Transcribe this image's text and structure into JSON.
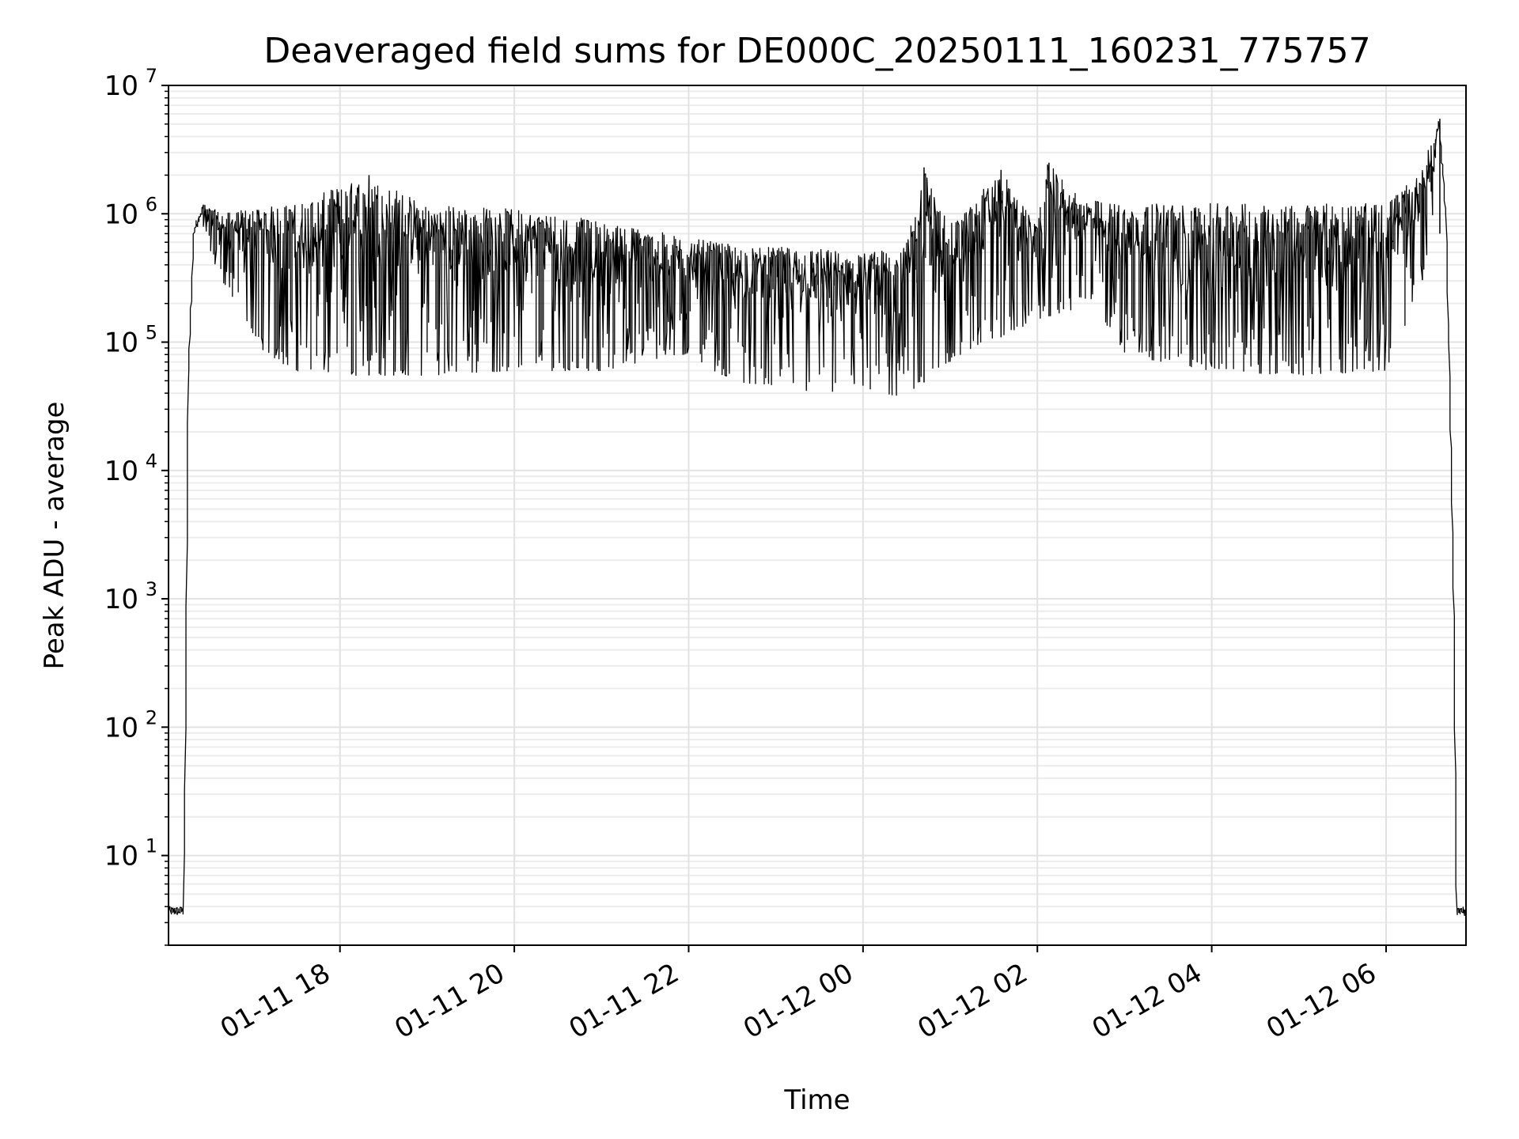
{
  "chart_data": {
    "type": "line",
    "title": "Deaveraged field sums for DE000C_20250111_160231_775757",
    "xlabel": "Time",
    "ylabel": "Peak ADU - average",
    "yscale": "log",
    "ylim": [
      2,
      10000000
    ],
    "y_ticks": [
      {
        "base": "10",
        "exp": "1",
        "value": 10
      },
      {
        "base": "10",
        "exp": "2",
        "value": 100
      },
      {
        "base": "10",
        "exp": "3",
        "value": 1000
      },
      {
        "base": "10",
        "exp": "4",
        "value": 10000
      },
      {
        "base": "10",
        "exp": "5",
        "value": 100000
      },
      {
        "base": "10",
        "exp": "6",
        "value": 1000000
      },
      {
        "base": "10",
        "exp": "7",
        "value": 10000000
      }
    ],
    "xlim": [
      "2025-01-11 16:02",
      "2025-01-12 06:55"
    ],
    "x_ticks": [
      {
        "label": "01-11 18",
        "value": "2025-01-11 18:00"
      },
      {
        "label": "01-11 20",
        "value": "2025-01-11 20:00"
      },
      {
        "label": "01-11 22",
        "value": "2025-01-11 22:00"
      },
      {
        "label": "01-12 00",
        "value": "2025-01-12 00:00"
      },
      {
        "label": "01-12 02",
        "value": "2025-01-12 02:00"
      },
      {
        "label": "01-12 04",
        "value": "2025-01-12 04:00"
      },
      {
        "label": "01-12 06",
        "value": "2025-01-12 06:00"
      }
    ],
    "grid": true,
    "line_color": "#000000",
    "series": [
      {
        "name": "",
        "upper_envelope": [
          [
            "2025-01-11 16:02",
            4
          ],
          [
            "2025-01-11 16:13",
            4
          ],
          [
            "2025-01-11 16:16",
            60000
          ],
          [
            "2025-01-11 16:20",
            800000
          ],
          [
            "2025-01-11 16:26",
            1200000
          ],
          [
            "2025-01-11 16:40",
            1000000
          ],
          [
            "2025-01-11 17:00",
            1100000
          ],
          [
            "2025-01-11 17:30",
            1200000
          ],
          [
            "2025-01-11 18:20",
            2000000
          ],
          [
            "2025-01-11 19:00",
            1200000
          ],
          [
            "2025-01-11 20:00",
            1100000
          ],
          [
            "2025-01-11 20:30",
            1000000
          ],
          [
            "2025-01-11 21:20",
            800000
          ],
          [
            "2025-01-11 22:00",
            650000
          ],
          [
            "2025-01-11 22:40",
            550000
          ],
          [
            "2025-01-11 23:20",
            550000
          ],
          [
            "2025-01-12 00:00",
            500000
          ],
          [
            "2025-01-12 00:30",
            550000
          ],
          [
            "2025-01-12 00:42",
            2300000
          ],
          [
            "2025-01-12 01:00",
            800000
          ],
          [
            "2025-01-12 01:35",
            2200000
          ],
          [
            "2025-01-12 02:00",
            800000
          ],
          [
            "2025-01-12 02:08",
            2500000
          ],
          [
            "2025-01-12 02:30",
            1300000
          ],
          [
            "2025-01-12 03:00",
            1200000
          ],
          [
            "2025-01-12 04:00",
            1200000
          ],
          [
            "2025-01-12 05:00",
            1200000
          ],
          [
            "2025-01-12 06:00",
            1200000
          ],
          [
            "2025-01-12 06:25",
            2100000
          ],
          [
            "2025-01-12 06:37",
            5500000
          ],
          [
            "2025-01-12 06:42",
            1000000
          ],
          [
            "2025-01-12 06:47",
            1000
          ],
          [
            "2025-01-12 06:49",
            4
          ],
          [
            "2025-01-12 06:55",
            4
          ]
        ],
        "lower_envelope": [
          [
            "2025-01-11 16:26",
            700000
          ],
          [
            "2025-01-11 16:40",
            300000
          ],
          [
            "2025-01-11 16:55",
            150000
          ],
          [
            "2025-01-11 17:10",
            80000
          ],
          [
            "2025-01-11 17:30",
            60000
          ],
          [
            "2025-01-11 18:00",
            55000
          ],
          [
            "2025-01-11 19:00",
            55000
          ],
          [
            "2025-01-11 20:00",
            60000
          ],
          [
            "2025-01-11 21:00",
            60000
          ],
          [
            "2025-01-11 22:00",
            80000
          ],
          [
            "2025-01-11 22:30",
            50000
          ],
          [
            "2025-01-11 23:30",
            40000
          ],
          [
            "2025-01-12 00:30",
            38000
          ],
          [
            "2025-01-12 01:00",
            70000
          ],
          [
            "2025-01-12 02:00",
            150000
          ],
          [
            "2025-01-12 02:40",
            200000
          ],
          [
            "2025-01-12 03:00",
            80000
          ],
          [
            "2025-01-12 04:00",
            60000
          ],
          [
            "2025-01-12 05:00",
            55000
          ],
          [
            "2025-01-12 06:00",
            60000
          ],
          [
            "2025-01-12 06:20",
            200000
          ],
          [
            "2025-01-12 06:35",
            700000
          ]
        ]
      }
    ]
  }
}
